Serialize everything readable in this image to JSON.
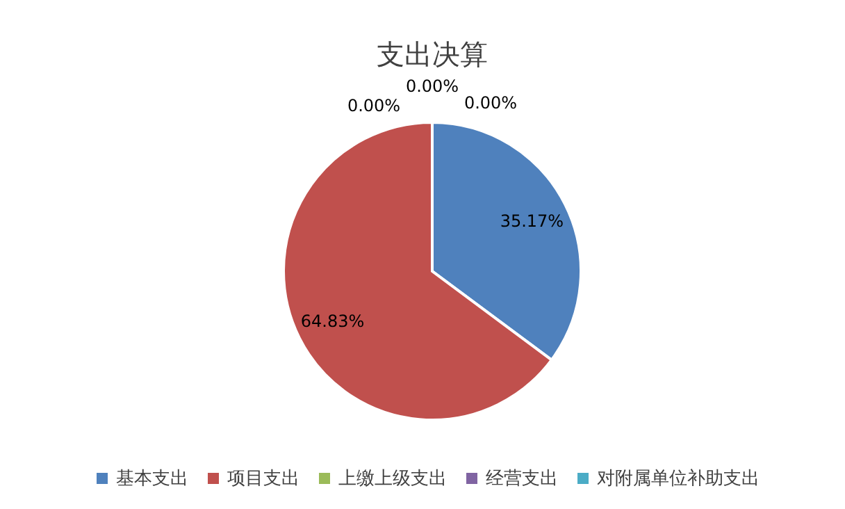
{
  "chart_data": {
    "type": "pie",
    "title": "支出决算",
    "categories": [
      "基本支出",
      "项目支出",
      "上缴上级支出",
      "经营支出",
      "对附属单位补助支出"
    ],
    "values": [
      35.17,
      64.83,
      0,
      0,
      0
    ],
    "colors": [
      "#4f81bd",
      "#c0504d",
      "#9bbb59",
      "#8064a2",
      "#4bacc6"
    ],
    "value_labels": [
      "35.17%",
      "64.83%",
      "0.00%",
      "0.00%",
      "0.00%"
    ],
    "legend": "bottom"
  }
}
